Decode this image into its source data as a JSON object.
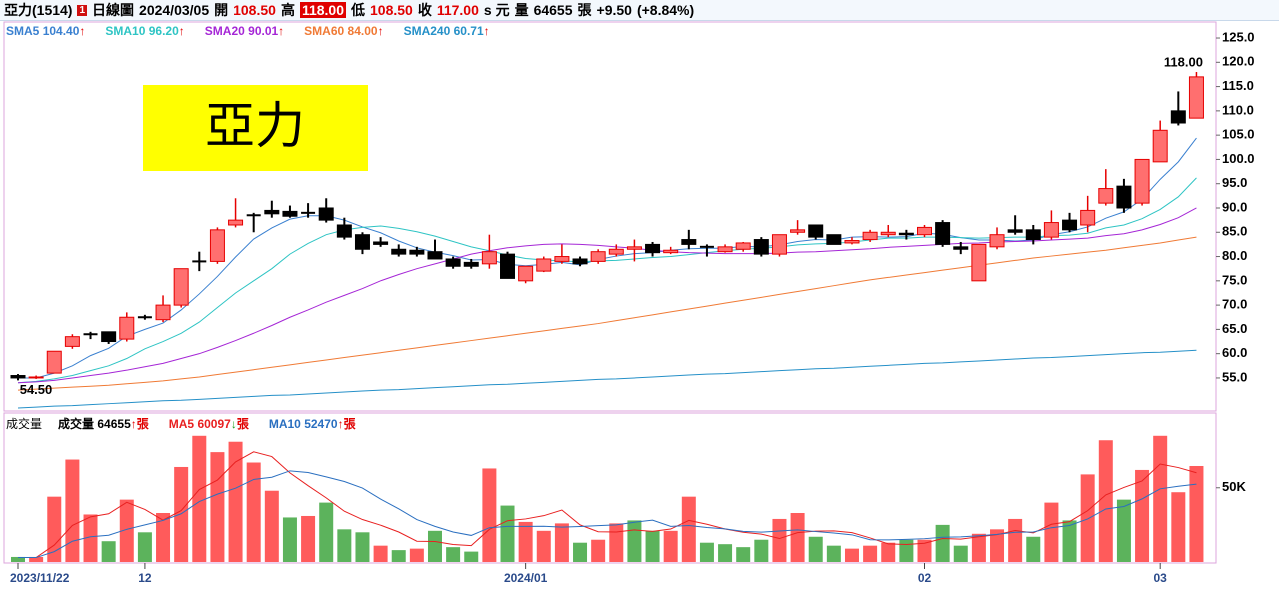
{
  "header": {
    "stock": "亞力(1514)",
    "badge": "1",
    "chart_kind": "日線圖",
    "date": "2024/03/05",
    "open_label": "開",
    "open": "108.50",
    "high_label": "高",
    "high": "118.00",
    "low_label": "低",
    "low": "108.50",
    "close_label": "收",
    "close": "117.00",
    "close_unit": "s 元",
    "volume_label": "量",
    "volume": "64655",
    "volume_unit": "張",
    "change": "+9.50",
    "change_pct": "(+8.84%)"
  },
  "chart_data": [
    {
      "type": "candlestick",
      "title": "亞力",
      "open": [
        55.5,
        55,
        56,
        61.5,
        64,
        64.5,
        63,
        67.5,
        67,
        70,
        79,
        79,
        86.5,
        88.5,
        89.5,
        89.3,
        89,
        90,
        86.5,
        84.5,
        83,
        81.5,
        81.3,
        81,
        79.5,
        78.8,
        78.5,
        80.5,
        75,
        77,
        79,
        79.5,
        79,
        80.5,
        81.5,
        82.5,
        80.8,
        83.5,
        82,
        81,
        81.5,
        83.5,
        80.5,
        85,
        86.5,
        84.5,
        82.8,
        83.5,
        84.5,
        84.8,
        84.5,
        87,
        82,
        75,
        82,
        85.5,
        85.5,
        84,
        87.5,
        86.5,
        91,
        94.5,
        91,
        99.5,
        110,
        108.5
      ],
      "high": [
        55.8,
        55.5,
        60.5,
        64,
        64.5,
        64.5,
        68.5,
        68,
        72,
        77.5,
        81,
        86,
        92,
        89,
        91.5,
        90.5,
        91,
        92,
        88,
        85,
        84,
        82.5,
        82,
        83.5,
        80,
        79.5,
        84.5,
        81,
        78,
        80,
        82.5,
        80,
        81.5,
        82.5,
        83.5,
        83,
        82,
        85.5,
        82.5,
        82.5,
        83,
        84,
        84.5,
        87.5,
        86.5,
        84.5,
        84,
        85.5,
        86.5,
        85.5,
        86.5,
        87.5,
        83,
        82.5,
        86,
        88.5,
        86.5,
        89.5,
        89,
        92.5,
        98,
        96,
        100,
        108,
        114,
        118
      ],
      "low": [
        54.5,
        54.8,
        56,
        61,
        63,
        62,
        62.5,
        67,
        66.5,
        69.5,
        77,
        78.5,
        86,
        85,
        88,
        88,
        88,
        87,
        83.5,
        80.5,
        82,
        80,
        80,
        79.5,
        77.5,
        77.5,
        77.5,
        75.5,
        74.5,
        76.8,
        78.5,
        78,
        78.5,
        80,
        79,
        80,
        80.5,
        81.5,
        80,
        80.8,
        81,
        80,
        80,
        84.5,
        83.5,
        82.5,
        82.5,
        83,
        84,
        83.5,
        84,
        82,
        80.5,
        75,
        81.5,
        84.5,
        82.5,
        83.5,
        85,
        85,
        90.5,
        89,
        90.5,
        99.5,
        107,
        108.5
      ],
      "close": [
        55,
        55.2,
        60.5,
        63.5,
        64,
        62.5,
        67.5,
        67.5,
        70,
        77.5,
        79,
        85.5,
        87.5,
        88.5,
        88.8,
        88.3,
        89,
        87.5,
        84,
        81.5,
        82.5,
        80.5,
        80.5,
        79.5,
        78,
        78,
        81,
        75.5,
        78,
        79.5,
        80,
        78.5,
        81,
        81.5,
        82,
        80.8,
        81.3,
        82.5,
        82,
        82,
        82.8,
        80.5,
        84.5,
        85.5,
        84,
        82.5,
        83.3,
        85,
        85,
        84.5,
        86,
        82.5,
        81.5,
        82.5,
        84.5,
        85,
        83.5,
        87,
        85.5,
        89.5,
        94,
        90,
        100,
        106,
        107.5,
        117
      ],
      "up_color": "#ff6f6f",
      "up_edge": "#e60000",
      "down_color": "#000000",
      "series": [
        {
          "name": "SMA5",
          "color": "#3a80d0",
          "legend_value": "104.40",
          "trend": "↑",
          "values": [
            55,
            55,
            56,
            57.5,
            59.6,
            61.1,
            63.6,
            65,
            66.3,
            69,
            72.3,
            75.9,
            79.9,
            83.6,
            85.9,
            87.7,
            88.4,
            88.4,
            87.5,
            86.1,
            84.9,
            83.2,
            81.8,
            80.9,
            80.2,
            79.3,
            79.4,
            78.4,
            78.1,
            78.4,
            78.8,
            78.3,
            79.4,
            80.1,
            80.6,
            80.8,
            81.3,
            81.6,
            81.7,
            81.7,
            82.1,
            82,
            82.4,
            83.1,
            83.5,
            83.4,
            84,
            84.1,
            84,
            84.1,
            84.8,
            84.6,
            83.9,
            83.4,
            83.4,
            83.2,
            83.4,
            84.5,
            85.1,
            86.1,
            87.9,
            89.2,
            91.8,
            95.9,
            99.5,
            104.4
          ]
        },
        {
          "name": "SMA10",
          "color": "#2ec4c4",
          "legend_value": "96.20",
          "trend": "↑",
          "values": [
            54,
            54.3,
            54.8,
            55.5,
            56.5,
            57.5,
            59,
            61,
            62.5,
            64.2,
            66.5,
            69.5,
            72.5,
            75,
            77.5,
            80.5,
            82.7,
            84.5,
            85.5,
            86,
            86.3,
            85.8,
            85.1,
            84.2,
            83.1,
            82,
            81.2,
            80.3,
            79.6,
            79.3,
            79.1,
            78.9,
            79.1,
            79.2,
            79.5,
            79.8,
            80,
            80.4,
            80.8,
            81.2,
            81.5,
            81.7,
            82,
            82.4,
            82.6,
            82.7,
            83,
            83.4,
            83.8,
            83.8,
            84,
            84,
            83.9,
            83.8,
            83.9,
            84,
            84,
            84.3,
            84.4,
            84.8,
            85.9,
            86.5,
            87.8,
            89.7,
            92.3,
            96.2
          ]
        },
        {
          "name": "SMA20",
          "color": "#a526d6",
          "legend_value": "90.01",
          "trend": "↑",
          "values": [
            54,
            54.2,
            54.5,
            55,
            55.5,
            56,
            56.6,
            57.3,
            58,
            59,
            60,
            61.3,
            62.7,
            64.2,
            65.8,
            67.5,
            69,
            70.6,
            72,
            73.4,
            75,
            76.3,
            77.5,
            78.5,
            79.5,
            80.5,
            81.2,
            81.8,
            82.2,
            82.5,
            82.6,
            82.5,
            82.3,
            82,
            81.7,
            81.3,
            81,
            80.8,
            80.7,
            80.6,
            80.6,
            80.6,
            80.7,
            80.9,
            81,
            81.2,
            81.4,
            81.6,
            81.9,
            82.1,
            82.3,
            82.5,
            82.7,
            82.8,
            83,
            83.1,
            83.2,
            83.4,
            83.6,
            83.8,
            84.3,
            84.7,
            85.5,
            86.6,
            88,
            90.01
          ]
        },
        {
          "name": "SMA60",
          "color": "#f07a35",
          "legend_value": "84.00",
          "trend": "↑",
          "values": [
            52.5,
            52.7,
            52.9,
            53.1,
            53.3,
            53.5,
            53.8,
            54.1,
            54.4,
            54.8,
            55.2,
            55.7,
            56.2,
            56.7,
            57.2,
            57.7,
            58.2,
            58.7,
            59.2,
            59.7,
            60.2,
            60.7,
            61.2,
            61.7,
            62.2,
            62.7,
            63.2,
            63.7,
            64.2,
            64.7,
            65.2,
            65.7,
            66.2,
            66.8,
            67.4,
            68,
            68.6,
            69.2,
            69.8,
            70.4,
            71,
            71.6,
            72.2,
            72.8,
            73.4,
            74,
            74.6,
            75.2,
            75.7,
            76.2,
            76.7,
            77.2,
            77.7,
            78.2,
            78.7,
            79.2,
            79.7,
            80.1,
            80.5,
            80.9,
            81.3,
            81.8,
            82.3,
            82.8,
            83.4,
            84
          ]
        },
        {
          "name": "SMA240",
          "color": "#2590c8",
          "legend_value": "60.71",
          "trend": "↑",
          "values": [
            48.8,
            49.0,
            49.2,
            49.3,
            49.5,
            49.7,
            49.9,
            50.1,
            50.3,
            50.4,
            50.6,
            50.8,
            51.0,
            51.2,
            51.4,
            51.5,
            51.7,
            51.9,
            52.1,
            52.3,
            52.5,
            52.6,
            52.8,
            53.0,
            53.2,
            53.4,
            53.6,
            53.7,
            53.9,
            54.1,
            54.3,
            54.5,
            54.7,
            54.8,
            55.0,
            55.2,
            55.4,
            55.6,
            55.8,
            55.9,
            56.1,
            56.3,
            56.5,
            56.7,
            56.9,
            57.0,
            57.2,
            57.4,
            57.6,
            57.8,
            58.0,
            58.1,
            58.3,
            58.5,
            58.7,
            58.9,
            59.1,
            59.2,
            59.4,
            59.6,
            59.8,
            60.0,
            60.2,
            60.3,
            60.5,
            60.71
          ]
        }
      ],
      "annotations": [
        {
          "value": 118,
          "label": "118.00"
        },
        {
          "value": 54.5,
          "label": "54.50"
        }
      ],
      "ylim": [
        48.4,
        128.3
      ],
      "yticks": [
        {
          "value": 125,
          "label": "125.0"
        },
        {
          "value": 120,
          "label": "120.0"
        },
        {
          "value": 115,
          "label": "115.0"
        },
        {
          "value": 110,
          "label": "110.0"
        },
        {
          "value": 105,
          "label": "105.0"
        },
        {
          "value": 100,
          "label": "100.0"
        },
        {
          "value": 95,
          "label": "95.0"
        },
        {
          "value": 90,
          "label": "90.0"
        },
        {
          "value": 85,
          "label": "85.0"
        },
        {
          "value": 80,
          "label": "80.0"
        },
        {
          "value": 75,
          "label": "75.0"
        },
        {
          "value": 70,
          "label": "70.0"
        },
        {
          "value": 65,
          "label": "65.0"
        },
        {
          "value": 60,
          "label": "60.0"
        },
        {
          "value": 55,
          "label": "55.0"
        }
      ]
    },
    {
      "type": "bar",
      "title": "成交量",
      "legend_main": {
        "name": "成交量",
        "value": "64655",
        "trend": "↑",
        "unit": "張"
      },
      "categories": [
        "2023/11/22",
        null,
        null,
        null,
        null,
        null,
        null,
        "12",
        null,
        null,
        null,
        null,
        null,
        null,
        null,
        null,
        null,
        null,
        null,
        null,
        null,
        null,
        null,
        null,
        null,
        null,
        null,
        null,
        "2024/01",
        null,
        null,
        null,
        null,
        null,
        null,
        null,
        null,
        null,
        null,
        null,
        null,
        null,
        null,
        null,
        null,
        null,
        null,
        null,
        null,
        null,
        "02",
        null,
        null,
        null,
        null,
        null,
        null,
        null,
        null,
        null,
        null,
        null,
        null,
        "03",
        null,
        null
      ],
      "values": [
        3400,
        3400,
        44000,
        69000,
        32000,
        14000,
        42000,
        20000,
        33000,
        64000,
        85000,
        74000,
        81000,
        67000,
        48000,
        30000,
        31000,
        40000,
        22000,
        20000,
        11000,
        8000,
        9000,
        21000,
        10000,
        7000,
        63000,
        38000,
        27000,
        21000,
        26000,
        13000,
        15000,
        26000,
        28000,
        21000,
        21000,
        44000,
        13000,
        12000,
        10000,
        15000,
        29000,
        33000,
        17000,
        11000,
        9000,
        11000,
        13000,
        15000,
        15000,
        25000,
        11000,
        19000,
        22000,
        29000,
        17000,
        40000,
        28000,
        59000,
        82000,
        42000,
        62000,
        85000,
        47000,
        64655
      ],
      "colors": [
        "#5cb35c",
        "#ff5b5b",
        "#ff5b5b",
        "#ff5b5b",
        "#ff5b5b",
        "#5cb35c",
        "#ff5b5b",
        "#5cb35c",
        "#ff5b5b",
        "#ff5b5b",
        "#ff5b5b",
        "#ff5b5b",
        "#ff5b5b",
        "#ff5b5b",
        "#ff5b5b",
        "#5cb35c",
        "#ff5b5b",
        "#5cb35c",
        "#5cb35c",
        "#5cb35c",
        "#ff5b5b",
        "#5cb35c",
        "#ff5b5b",
        "#5cb35c",
        "#5cb35c",
        "#5cb35c",
        "#ff5b5b",
        "#5cb35c",
        "#ff5b5b",
        "#ff5b5b",
        "#ff5b5b",
        "#5cb35c",
        "#ff5b5b",
        "#ff5b5b",
        "#5cb35c",
        "#5cb35c",
        "#ff5b5b",
        "#ff5b5b",
        "#5cb35c",
        "#5cb35c",
        "#5cb35c",
        "#5cb35c",
        "#ff5b5b",
        "#ff5b5b",
        "#5cb35c",
        "#5cb35c",
        "#ff5b5b",
        "#ff5b5b",
        "#ff5b5b",
        "#5cb35c",
        "#ff5b5b",
        "#5cb35c",
        "#5cb35c",
        "#ff5b5b",
        "#ff5b5b",
        "#ff5b5b",
        "#5cb35c",
        "#ff5b5b",
        "#5cb35c",
        "#ff5b5b",
        "#ff5b5b",
        "#5cb35c",
        "#ff5b5b",
        "#ff5b5b",
        "#ff5b5b",
        "#ff5b5b"
      ],
      "series": [
        {
          "name": "MA5",
          "color": "#e82020",
          "legend_value": "60097",
          "trend": "↓",
          "unit": "張",
          "values": [
            3000,
            3000,
            11400,
            24600,
            30400,
            32500,
            40200,
            35400,
            28200,
            34600,
            48800,
            55200,
            67400,
            74200,
            71000,
            60000,
            51400,
            43200,
            34200,
            28600,
            24800,
            20200,
            14000,
            13800,
            11800,
            11000,
            22000,
            27800,
            29000,
            31200,
            35000,
            25000,
            20400,
            20200,
            21600,
            20600,
            22200,
            28000,
            25400,
            22200,
            20000,
            18800,
            15800,
            19800,
            20800,
            21000,
            19800,
            16200,
            12200,
            11800,
            12600,
            15800,
            15400,
            17000,
            18400,
            21200,
            19600,
            25400,
            27200,
            34600,
            45200,
            50200,
            54600,
            66000,
            63600,
            60097
          ]
        },
        {
          "name": "MA10",
          "color": "#2a6fc0",
          "legend_value": "52470",
          "trend": "↑",
          "unit": "張",
          "values": [
            3000,
            3000,
            7000,
            14000,
            17000,
            18000,
            22000,
            25000,
            28000,
            32500,
            40700,
            45700,
            49700,
            55600,
            57100,
            61400,
            60300,
            57300,
            54200,
            49800,
            42400,
            35800,
            28600,
            24000,
            20200,
            17900,
            23100,
            24000,
            24000,
            24100,
            23500,
            23900,
            24500,
            25000,
            26800,
            28200,
            24000,
            24600,
            23200,
            22300,
            20600,
            20100,
            20900,
            21600,
            20500,
            19500,
            18300,
            15000,
            14900,
            15200,
            15700,
            16700,
            16900,
            17700,
            18600,
            20000,
            20200,
            23100,
            24600,
            29000,
            35700,
            37400,
            42500,
            49300,
            51000,
            52470
          ]
        }
      ],
      "ylim": [
        0,
        99000
      ],
      "yticks": [
        {
          "value": 50000,
          "label": "50K"
        }
      ]
    }
  ]
}
